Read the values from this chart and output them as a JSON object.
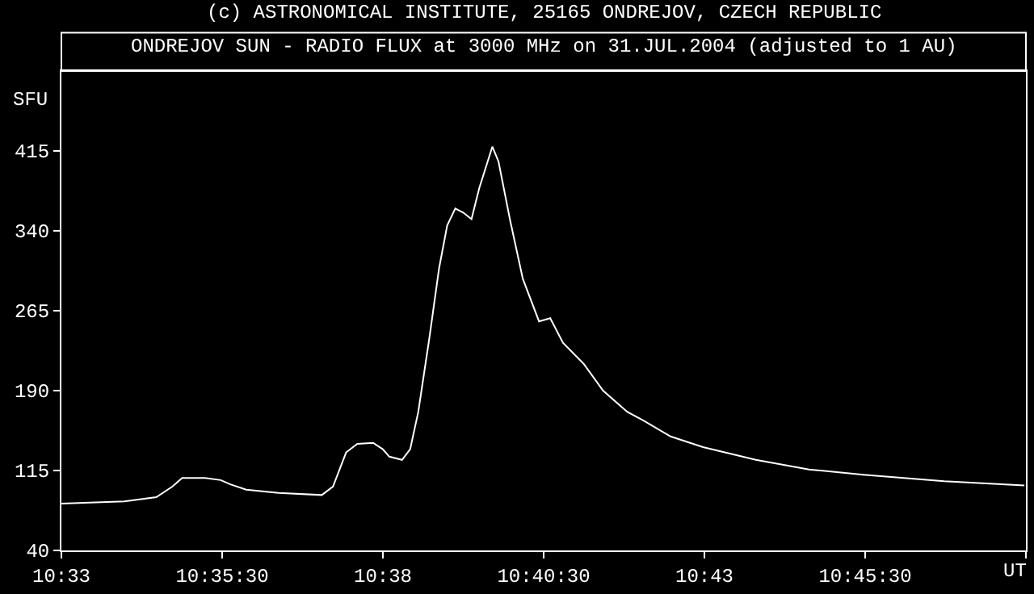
{
  "chart_data": {
    "type": "line",
    "title": "(c) ASTRONOMICAL INSTITUTE, 25165 ONDREJOV, CZECH REPUBLIC",
    "subtitle": "ONDREJOV SUN - RADIO FLUX at 3000 MHz on 31.JUL.2004 (adjusted to 1 AU)",
    "xlabel": "UT",
    "ylabel": "SFU",
    "x": [
      10.55,
      10.5663,
      10.5746,
      10.5788,
      10.5813,
      10.5871,
      10.5913,
      10.5938,
      10.5979,
      10.6063,
      10.6175,
      10.6204,
      10.6238,
      10.6267,
      10.6308,
      10.6333,
      10.635,
      10.6383,
      10.6404,
      10.6425,
      10.6454,
      10.6479,
      10.65,
      10.6521,
      10.6542,
      10.6563,
      10.6583,
      10.6617,
      10.6633,
      10.6663,
      10.6696,
      10.6738,
      10.6767,
      10.68,
      10.6854,
      10.6904,
      10.6967,
      10.7008,
      10.7079,
      10.7163,
      10.73,
      10.7438,
      10.7579,
      10.7788,
      10.7996
    ],
    "series": [
      {
        "color": "#ffffff",
        "values": [
          84,
          86,
          90,
          100,
          108,
          108,
          106,
          102,
          97,
          94,
          92,
          100,
          132,
          140,
          141,
          135,
          128,
          125,
          135,
          170,
          240,
          305,
          345,
          361,
          357,
          351,
          380,
          419,
          405,
          350,
          295,
          255,
          258,
          235,
          215,
          190,
          170,
          162,
          147,
          137,
          125,
          116,
          111,
          105,
          101
        ]
      }
    ],
    "xlim": [
      10.55,
      10.8
    ],
    "xticks": [
      {
        "value": 10.55,
        "label": "10:33"
      },
      {
        "value": 10.591667,
        "label": "10:35:30"
      },
      {
        "value": 10.633333,
        "label": "10:38"
      },
      {
        "value": 10.675,
        "label": "10:40:30"
      },
      {
        "value": 10.716667,
        "label": "10:43"
      },
      {
        "value": 10.758333,
        "label": "10:45:30"
      },
      {
        "value": 10.8,
        "label": null
      }
    ],
    "ylim": [
      40,
      490
    ],
    "yticks": [
      40,
      115,
      190,
      265,
      340,
      415
    ],
    "grid": false,
    "legend": false,
    "marker": "none",
    "line_style": "solid"
  }
}
